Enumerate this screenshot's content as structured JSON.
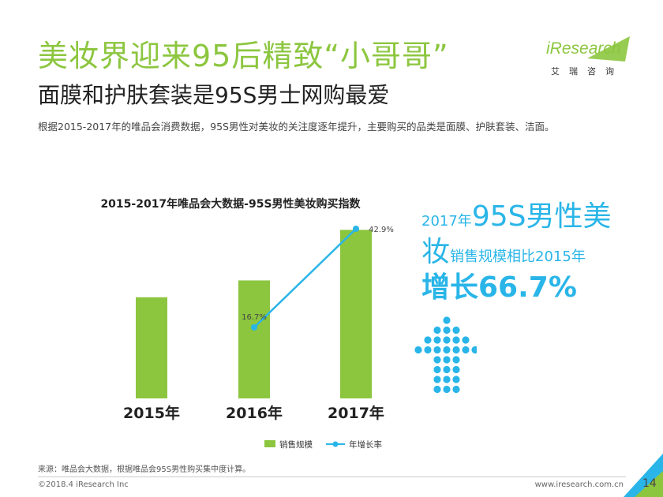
{
  "header": {
    "title": "美妆界迎来95后精致“小哥哥”",
    "subtitle": "面膜和护肤套装是95S男士网购最爱",
    "description": "根据2015-2017年的唯品会消费数据，95S男性对美妆的关注度逐年提升，主要购买的品类是面膜、护肤套装、洁面。"
  },
  "logo": {
    "brand": "iResearch",
    "cn": "艾瑞咨询",
    "color": "#8cc63f"
  },
  "chart_data": {
    "type": "bar",
    "title": "2015-2017年唯品会大数据-95S男性美妆购买指数",
    "categories": [
      "2015年",
      "2016年",
      "2017年"
    ],
    "series": [
      {
        "name": "销售规模",
        "kind": "bar",
        "values": [
          60,
          70,
          100
        ],
        "color": "#8cc63f"
      },
      {
        "name": "年增长率",
        "kind": "line",
        "values": [
          null,
          16.7,
          42.9
        ],
        "labels": [
          "",
          "16.7%",
          "42.9%"
        ],
        "color": "#29b5e8"
      }
    ],
    "ylim": [
      0,
      110
    ],
    "grid": false,
    "legend": "bottom-center"
  },
  "highlight": {
    "line1_small": "2017年",
    "line1_large": "95S男性美",
    "line2_large": "妆",
    "line2_small": "销售规模相比2015年",
    "line3": "增长66.7%",
    "color": "#29b5e8"
  },
  "footer": {
    "source": "来源：唯品会大数据，根据唯品会95S男性购买集中度计算。",
    "copyright": "©2018.4 iResearch Inc",
    "site": "www.iresearch.com.cn",
    "page": "14"
  }
}
